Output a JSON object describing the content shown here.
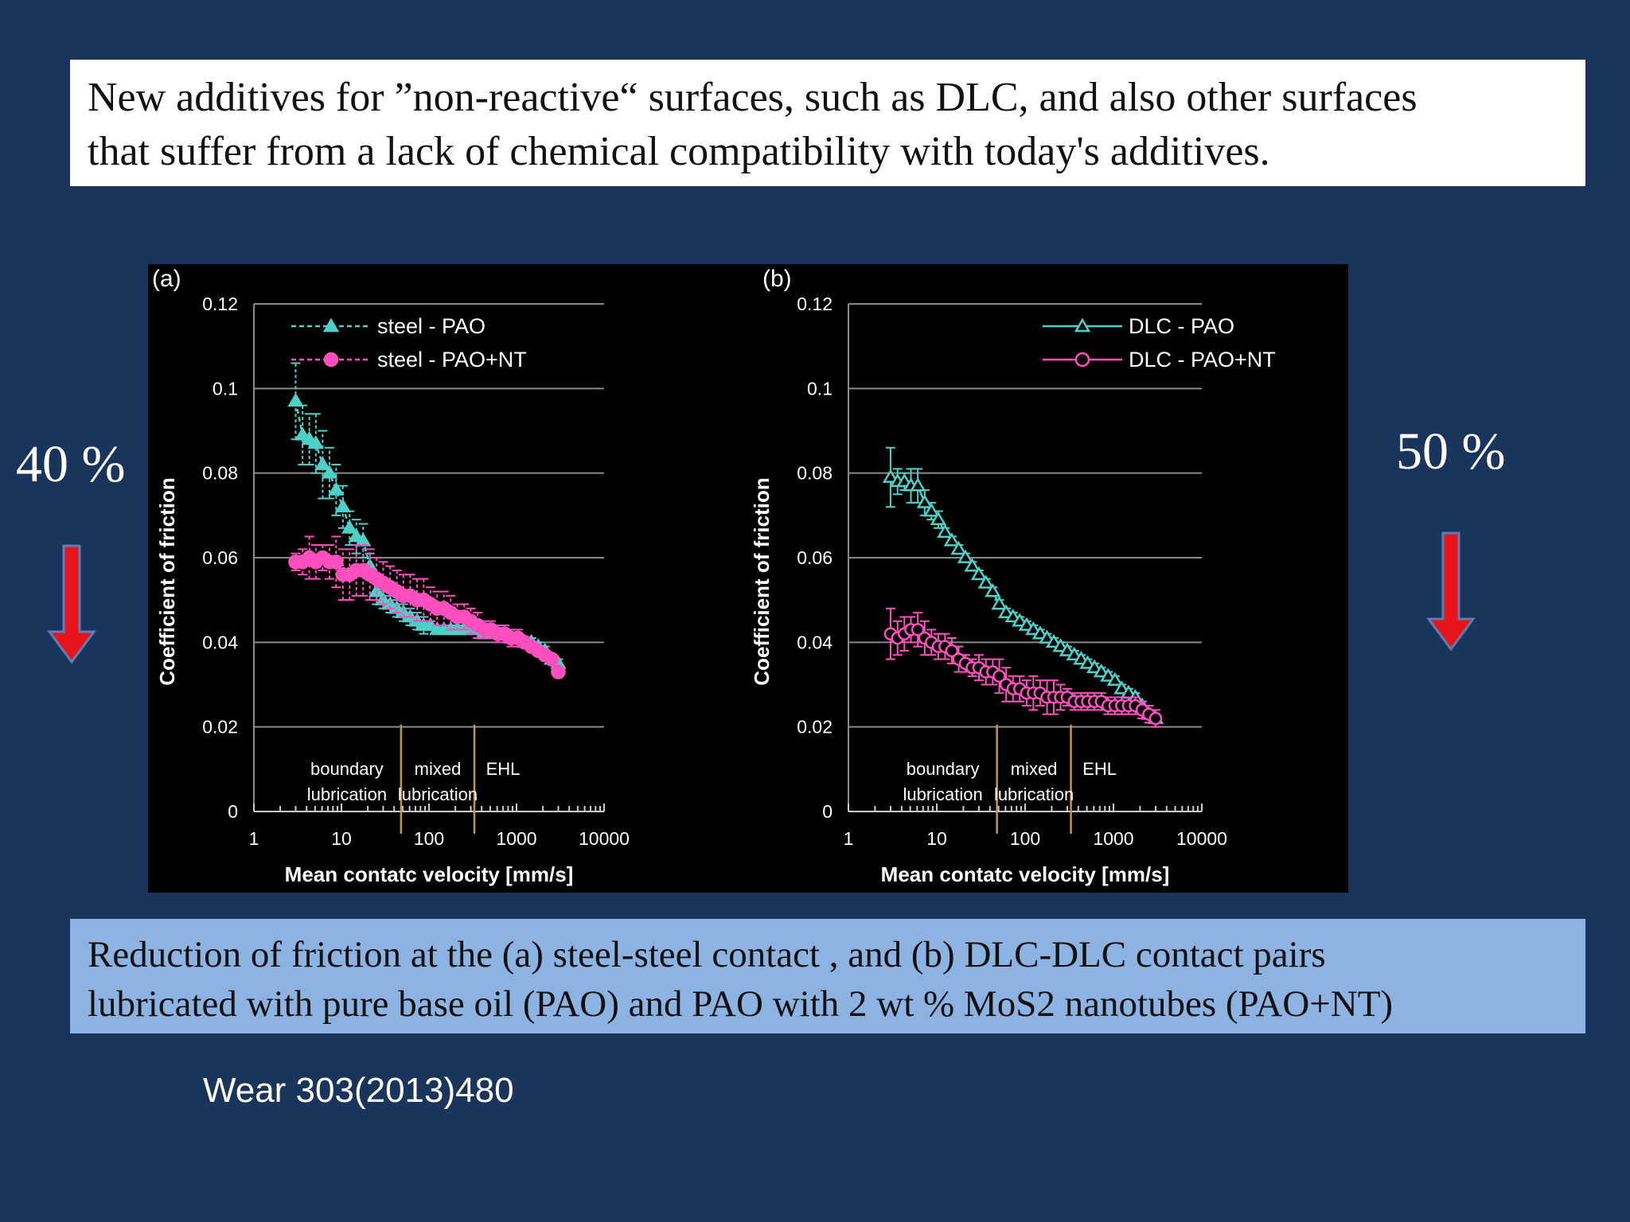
{
  "slide": {
    "title_lines": [
      "New additives for ”non-reactive“ surfaces, such as DLC, and also other surfaces",
      "that suffer from a lack of chemical compatibility with today's additives."
    ],
    "caption_lines": [
      "Reduction of friction at the (a) steel-steel contact , and (b) DLC-DLC contact pairs",
      "lubricated with pure base oil (PAO) and PAO with 2 wt % MoS2 nanotubes (PAO+NT)"
    ],
    "left_percent": "40 %",
    "right_percent": "50 %",
    "reference": "Wear 303(2013)480",
    "colors": {
      "background": "#1a355c",
      "cyan": "#4dd0c8",
      "magenta": "#ff4fbf",
      "arrow": "#e8141c",
      "divider": "#c8934a"
    }
  },
  "chart_data": [
    {
      "type": "scatter",
      "panel_label": "(a)",
      "xlabel": "Mean contatc velocity [mm/s]",
      "ylabel": "Coefficient of friction",
      "x_scale": "log",
      "xlim": [
        1,
        10000
      ],
      "ylim": [
        0,
        0.12
      ],
      "x_ticks": [
        "1",
        "10",
        "100",
        "1000",
        "10000"
      ],
      "y_ticks": [
        "0",
        "0.02",
        "0.04",
        "0.06",
        "0.08",
        "0.1",
        "0.12"
      ],
      "grid": "horizontal",
      "legend": "top-center",
      "regimes": [
        {
          "label": [
            "boundary",
            "lubrication"
          ],
          "x_from": 1,
          "x_to": 48
        },
        {
          "label": [
            "mixed",
            "lubrication"
          ],
          "x_from": 48,
          "x_to": 330
        },
        {
          "label": [
            "EHL"
          ],
          "x_from": 330,
          "x_to": 10000
        }
      ],
      "series": [
        {
          "name": "steel - PAO",
          "marker": "triangle-filled",
          "line": "dashed",
          "color": "#4dd0c8",
          "x": [
            3,
            3.6,
            4.3,
            5.1,
            6.1,
            7.3,
            8.7,
            10.4,
            12.4,
            14.8,
            17.7,
            21.1,
            25.2,
            30,
            36,
            43,
            51,
            61,
            73,
            87,
            104,
            124,
            148,
            177,
            211,
            252,
            300,
            360,
            430,
            510,
            610,
            730,
            870,
            1040,
            1240,
            1480,
            1770,
            2110,
            2520,
            3000
          ],
          "y": [
            0.097,
            0.089,
            0.088,
            0.087,
            0.082,
            0.08,
            0.076,
            0.072,
            0.067,
            0.065,
            0.064,
            0.058,
            0.052,
            0.05,
            0.049,
            0.048,
            0.047,
            0.046,
            0.045,
            0.044,
            0.044,
            0.043,
            0.043,
            0.043,
            0.043,
            0.043,
            0.043,
            0.043,
            0.042,
            0.042,
            0.042,
            0.042,
            0.041,
            0.041,
            0.04,
            0.04,
            0.039,
            0.038,
            0.036,
            0.035
          ],
          "err": [
            0.009,
            0.007,
            0.006,
            0.007,
            0.008,
            0.006,
            0.006,
            0.005,
            0.004,
            0.004,
            0.004,
            0.003,
            0.003,
            0.002,
            0.002,
            0.002,
            0.002,
            0.002,
            0.002,
            0.002,
            0.001,
            0.001,
            0.001,
            0.001,
            0.001,
            0.001,
            0.001,
            0.001,
            0.001,
            0.001,
            0.001,
            0.001,
            0.001,
            0.001,
            0.001,
            0.001,
            0.001,
            0.001,
            0.001,
            0.001
          ]
        },
        {
          "name": "steel - PAO+NT",
          "marker": "circle-filled",
          "line": "dashed",
          "color": "#ff4fbf",
          "x": [
            3,
            3.6,
            4.3,
            5.1,
            6.1,
            7.3,
            8.7,
            10.4,
            12.4,
            14.8,
            17.7,
            21.1,
            25.2,
            30,
            36,
            43,
            51,
            61,
            73,
            87,
            104,
            124,
            148,
            177,
            211,
            252,
            300,
            360,
            430,
            510,
            610,
            730,
            870,
            1040,
            1240,
            1480,
            1770,
            2110,
            2520,
            3000
          ],
          "y": [
            0.059,
            0.059,
            0.06,
            0.059,
            0.06,
            0.059,
            0.059,
            0.056,
            0.056,
            0.057,
            0.057,
            0.056,
            0.055,
            0.054,
            0.053,
            0.052,
            0.051,
            0.051,
            0.05,
            0.05,
            0.049,
            0.048,
            0.048,
            0.047,
            0.046,
            0.046,
            0.045,
            0.044,
            0.043,
            0.043,
            0.042,
            0.042,
            0.041,
            0.041,
            0.04,
            0.039,
            0.038,
            0.037,
            0.036,
            0.033
          ],
          "err": [
            0.002,
            0.003,
            0.005,
            0.004,
            0.003,
            0.004,
            0.006,
            0.006,
            0.006,
            0.006,
            0.006,
            0.006,
            0.005,
            0.005,
            0.005,
            0.005,
            0.005,
            0.005,
            0.005,
            0.005,
            0.004,
            0.004,
            0.004,
            0.004,
            0.003,
            0.003,
            0.003,
            0.003,
            0.002,
            0.002,
            0.002,
            0.002,
            0.002,
            0.002,
            0.001,
            0.001,
            0.001,
            0.001,
            0.001,
            0.001
          ]
        }
      ]
    },
    {
      "type": "scatter",
      "panel_label": "(b)",
      "xlabel": "Mean contatc velocity [mm/s]",
      "ylabel": "Coefficient of friction",
      "x_scale": "log",
      "xlim": [
        1,
        10000
      ],
      "ylim": [
        0,
        0.12
      ],
      "x_ticks": [
        "1",
        "10",
        "100",
        "1000",
        "10000"
      ],
      "y_ticks": [
        "0",
        "0.02",
        "0.04",
        "0.06",
        "0.08",
        "0.1",
        "0.12"
      ],
      "grid": "horizontal",
      "legend": "top-right",
      "regimes": [
        {
          "label": [
            "boundary",
            "lubrication"
          ],
          "x_from": 1,
          "x_to": 48
        },
        {
          "label": [
            "mixed",
            "lubrication"
          ],
          "x_from": 48,
          "x_to": 330
        },
        {
          "label": [
            "EHL"
          ],
          "x_from": 330,
          "x_to": 10000
        }
      ],
      "series": [
        {
          "name": "DLC - PAO",
          "marker": "triangle-open",
          "line": "solid",
          "color": "#4dd0c8",
          "x": [
            3,
            3.6,
            4.3,
            5.1,
            6.1,
            7.3,
            8.7,
            10.4,
            12.4,
            14.8,
            17.7,
            21.1,
            25.2,
            30,
            36,
            43,
            51,
            61,
            73,
            87,
            104,
            124,
            148,
            177,
            211,
            252,
            300,
            360,
            430,
            510,
            610,
            730,
            870,
            1040,
            1240,
            1480,
            1770,
            2110,
            2520,
            3000
          ],
          "y": [
            0.079,
            0.078,
            0.078,
            0.077,
            0.077,
            0.073,
            0.071,
            0.069,
            0.066,
            0.064,
            0.062,
            0.06,
            0.058,
            0.056,
            0.054,
            0.052,
            0.049,
            0.047,
            0.046,
            0.045,
            0.044,
            0.043,
            0.042,
            0.041,
            0.04,
            0.039,
            0.038,
            0.037,
            0.036,
            0.035,
            0.034,
            0.033,
            0.032,
            0.031,
            0.029,
            0.028,
            0.027,
            0.025,
            0.023,
            0.022
          ],
          "err": [
            0.007,
            0.003,
            0.002,
            0.004,
            0.004,
            0.003,
            0.002,
            0.002,
            0.001,
            0.001,
            0.001,
            0.001,
            0.001,
            0.001,
            0.001,
            0.001,
            0.001,
            0.001,
            0.001,
            0.001,
            0.001,
            0.001,
            0.001,
            0.001,
            0.001,
            0.001,
            0.001,
            0.001,
            0.001,
            0.001,
            0.001,
            0.001,
            0.001,
            0.001,
            0.001,
            0.001,
            0.001,
            0.001,
            0.001,
            0.001
          ]
        },
        {
          "name": "DLC - PAO+NT",
          "marker": "circle-open",
          "line": "solid",
          "color": "#ff4fbf",
          "x": [
            3,
            3.6,
            4.3,
            5.1,
            6.1,
            7.3,
            8.7,
            10.4,
            12.4,
            14.8,
            17.7,
            21.1,
            25.2,
            30,
            36,
            43,
            51,
            61,
            73,
            87,
            104,
            124,
            148,
            177,
            211,
            252,
            300,
            360,
            430,
            510,
            610,
            730,
            870,
            1040,
            1240,
            1480,
            1770,
            2110,
            2520,
            3000
          ],
          "y": [
            0.042,
            0.041,
            0.042,
            0.043,
            0.043,
            0.041,
            0.04,
            0.039,
            0.039,
            0.038,
            0.036,
            0.035,
            0.034,
            0.034,
            0.033,
            0.033,
            0.032,
            0.03,
            0.029,
            0.029,
            0.028,
            0.028,
            0.028,
            0.027,
            0.027,
            0.027,
            0.027,
            0.026,
            0.026,
            0.026,
            0.026,
            0.026,
            0.025,
            0.025,
            0.025,
            0.025,
            0.025,
            0.024,
            0.023,
            0.022
          ],
          "err": [
            0.006,
            0.004,
            0.004,
            0.003,
            0.004,
            0.004,
            0.003,
            0.003,
            0.003,
            0.003,
            0.003,
            0.002,
            0.002,
            0.003,
            0.003,
            0.003,
            0.004,
            0.004,
            0.003,
            0.003,
            0.003,
            0.004,
            0.003,
            0.004,
            0.004,
            0.003,
            0.002,
            0.002,
            0.002,
            0.002,
            0.002,
            0.002,
            0.002,
            0.002,
            0.002,
            0.002,
            0.002,
            0.002,
            0.002,
            0.002
          ]
        }
      ]
    }
  ]
}
